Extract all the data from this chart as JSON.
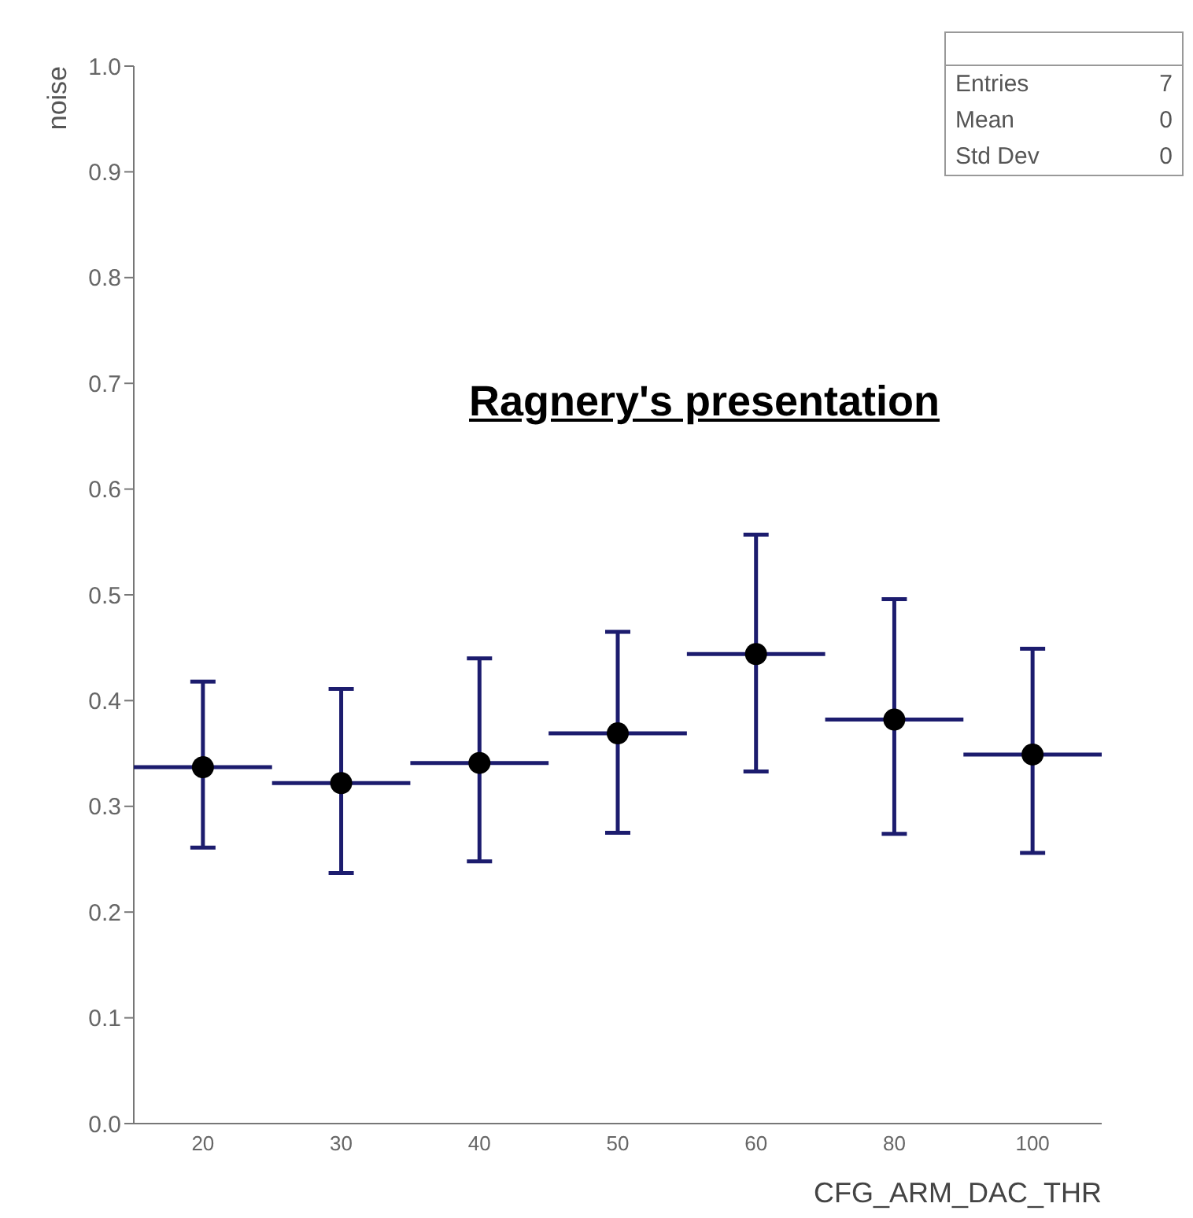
{
  "chart_data": {
    "type": "scatter",
    "xlabel": "CFG_ARM_DAC_THR",
    "ylabel": "noise",
    "categories": [
      "20",
      "30",
      "40",
      "50",
      "60",
      "80",
      "100"
    ],
    "series": [
      {
        "color": "#000000",
        "values": [
          0.337,
          0.322,
          0.341,
          0.369,
          0.444,
          0.382,
          0.349
        ],
        "errors": [
          [
            0.261,
            0.418
          ],
          [
            0.237,
            0.411
          ],
          [
            0.248,
            0.44
          ],
          [
            0.275,
            0.465
          ],
          [
            0.333,
            0.557
          ],
          [
            0.274,
            0.496
          ],
          [
            0.256,
            0.449
          ]
        ]
      }
    ],
    "ylim": [
      0,
      1
    ],
    "yticks": [
      {
        "value": 0,
        "label": "0.0"
      },
      0.1,
      0.2,
      0.3,
      0.4,
      0.5,
      0.6,
      0.7,
      0.8,
      0.9,
      {
        "value": 1,
        "label": "1.0"
      }
    ],
    "grid": false,
    "marker": "circle",
    "annotations": [
      "Entries 7",
      "Mean 0",
      "Std Dev 0",
      "Ragnery's presentation"
    ]
  }
}
